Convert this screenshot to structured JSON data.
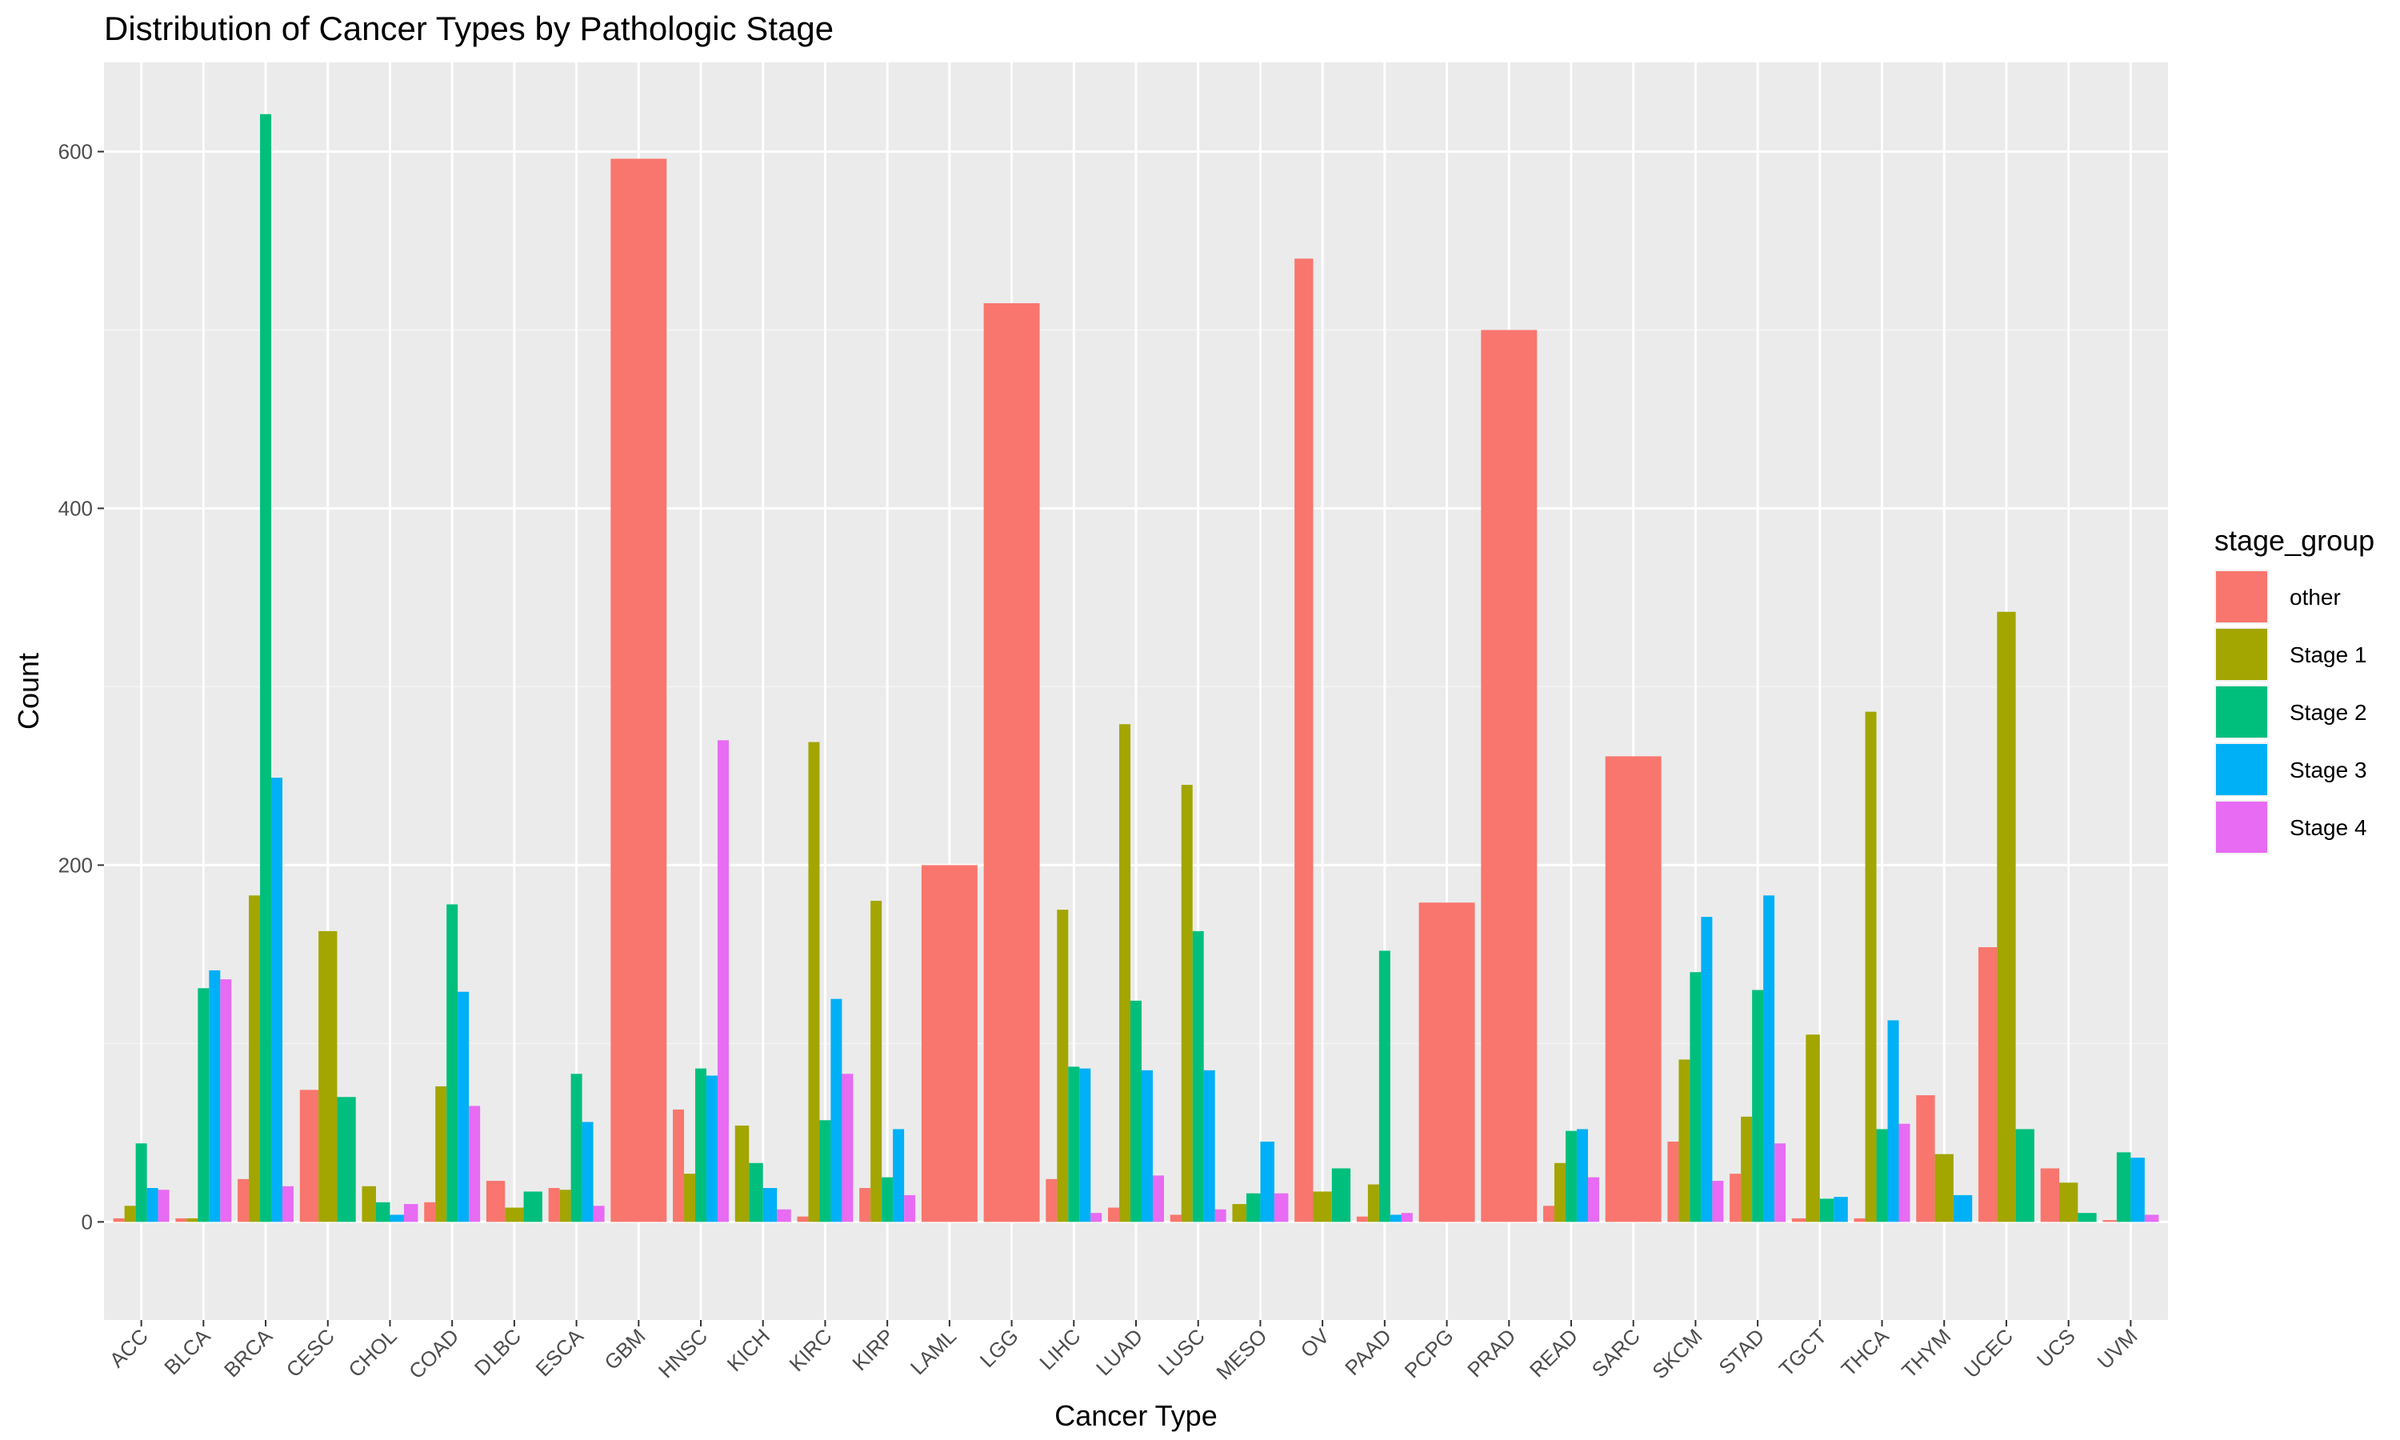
{
  "chart_data": {
    "type": "bar",
    "title": "Distribution of Cancer Types by Pathologic Stage",
    "xlabel": "Cancer Type",
    "ylabel": "Count",
    "ylim": [
      -55,
      650
    ],
    "yticks": [
      0,
      200,
      400,
      600
    ],
    "grid": true,
    "legend": {
      "title": "stage_group",
      "position": "right"
    },
    "categories": [
      "ACC",
      "BLCA",
      "BRCA",
      "CESC",
      "CHOL",
      "COAD",
      "DLBC",
      "ESCA",
      "GBM",
      "HNSC",
      "KICH",
      "KIRC",
      "KIRP",
      "LAML",
      "LGG",
      "LIHC",
      "LUAD",
      "LUSC",
      "MESO",
      "OV",
      "PAAD",
      "PCPG",
      "PRAD",
      "READ",
      "SARC",
      "SKCM",
      "STAD",
      "TGCT",
      "THCA",
      "THYM",
      "UCEC",
      "UCS",
      "UVM"
    ],
    "series": [
      {
        "name": "other",
        "color": "#F8766D",
        "values": [
          2,
          2,
          24,
          74,
          null,
          11,
          23,
          19,
          596,
          63,
          null,
          3,
          19,
          200,
          515,
          24,
          8,
          4,
          null,
          540,
          3,
          179,
          500,
          9,
          261,
          45,
          27,
          2,
          2,
          71,
          154,
          30,
          1
        ]
      },
      {
        "name": "Stage 1",
        "color": "#A3A500",
        "values": [
          9,
          2,
          183,
          163,
          20,
          76,
          8,
          18,
          null,
          27,
          54,
          269,
          180,
          null,
          null,
          175,
          279,
          245,
          10,
          17,
          21,
          null,
          null,
          33,
          null,
          91,
          59,
          105,
          286,
          38,
          342,
          22,
          null
        ]
      },
      {
        "name": "Stage 2",
        "color": "#00BF7D",
        "values": [
          44,
          131,
          621,
          70,
          11,
          178,
          17,
          83,
          null,
          86,
          33,
          57,
          25,
          null,
          null,
          87,
          124,
          163,
          16,
          30,
          152,
          null,
          null,
          51,
          null,
          140,
          130,
          13,
          52,
          null,
          52,
          5,
          39
        ]
      },
      {
        "name": "Stage 3",
        "color": "#00B0F6",
        "values": [
          19,
          141,
          249,
          null,
          4,
          129,
          null,
          56,
          null,
          82,
          19,
          125,
          52,
          null,
          null,
          86,
          85,
          85,
          45,
          null,
          4,
          null,
          null,
          52,
          null,
          171,
          183,
          14,
          113,
          15,
          null,
          null,
          36
        ]
      },
      {
        "name": "Stage 4",
        "color": "#E76BF3",
        "values": [
          18,
          136,
          20,
          null,
          10,
          65,
          null,
          9,
          null,
          270,
          7,
          83,
          15,
          null,
          null,
          5,
          26,
          7,
          16,
          null,
          5,
          null,
          null,
          25,
          null,
          23,
          44,
          null,
          55,
          null,
          null,
          null,
          4
        ]
      }
    ]
  }
}
